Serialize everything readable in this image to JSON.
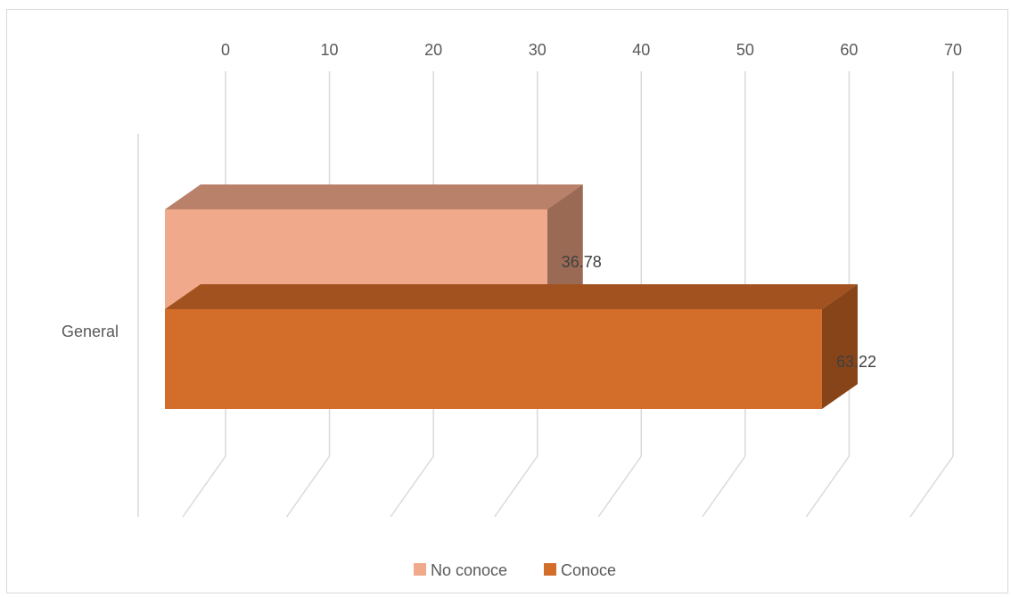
{
  "chart_data": {
    "type": "bar",
    "orientation": "horizontal",
    "style": "3d-clustered-bar",
    "categories": [
      "General"
    ],
    "series": [
      {
        "name": "No conoce",
        "values": [
          36.78
        ],
        "color": "#f1a98b",
        "top_color": "#b9806a",
        "side_color": "#9a6a55"
      },
      {
        "name": "Conoce",
        "values": [
          63.22
        ],
        "color": "#d36d2a",
        "top_color": "#a1521e",
        "side_color": "#874419"
      }
    ],
    "data_labels": [
      "36.78",
      "63.22"
    ],
    "xlim": [
      0,
      70
    ],
    "x_ticks": [
      "0",
      "10",
      "20",
      "30",
      "40",
      "50",
      "60",
      "70"
    ],
    "xlabel": "",
    "ylabel": "",
    "title": "",
    "grid": true,
    "legend_position": "bottom"
  }
}
